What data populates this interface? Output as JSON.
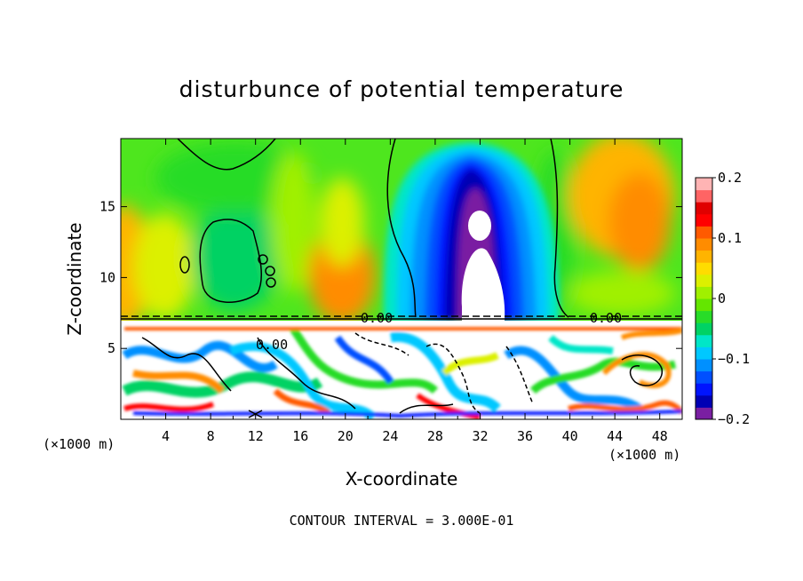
{
  "chart_data": {
    "type": "heatmap",
    "title": "disturbunce of potential temperature",
    "xlabel": "X-coordinate",
    "ylabel": "Z-coordinate",
    "x_unit_left": "(×1000 m)",
    "x_unit_right": "(×1000 m)",
    "xlim": [
      0,
      50
    ],
    "ylim": [
      0,
      19.8
    ],
    "x_ticks": [
      4,
      8,
      12,
      16,
      20,
      24,
      28,
      32,
      36,
      40,
      44,
      48
    ],
    "y_ticks": [
      5,
      10,
      15
    ],
    "colorbar": {
      "min": -0.2,
      "max": 0.2,
      "tick_values": [
        0.2,
        0.1,
        0,
        -0.1,
        -0.2
      ],
      "tick_labels": [
        "0.2",
        "0.1",
        "0",
        "−0.1",
        "−0.2"
      ],
      "colors": [
        "#7a1fa2",
        "#0000b4",
        "#0014ff",
        "#0050ff",
        "#0090ff",
        "#00c8ff",
        "#00e6c8",
        "#00d264",
        "#28dc28",
        "#64e600",
        "#a0f000",
        "#dcf000",
        "#ffdc00",
        "#ffb400",
        "#ff8c00",
        "#ff5a00",
        "#ff0000",
        "#e00000",
        "#ff6464",
        "#ffb4b4"
      ]
    },
    "contour_labels": [
      "0.00",
      "0.00",
      "0.00"
    ],
    "contour_interval_text": "CONTOUR INTERVAL = 3.000E-01",
    "description_values": {
      "cold_plume_center_x": 32,
      "cold_plume_min": -0.2,
      "warm_region_x": [
        18,
        46
      ],
      "boundary_layer_top_z": 7.3
    }
  }
}
